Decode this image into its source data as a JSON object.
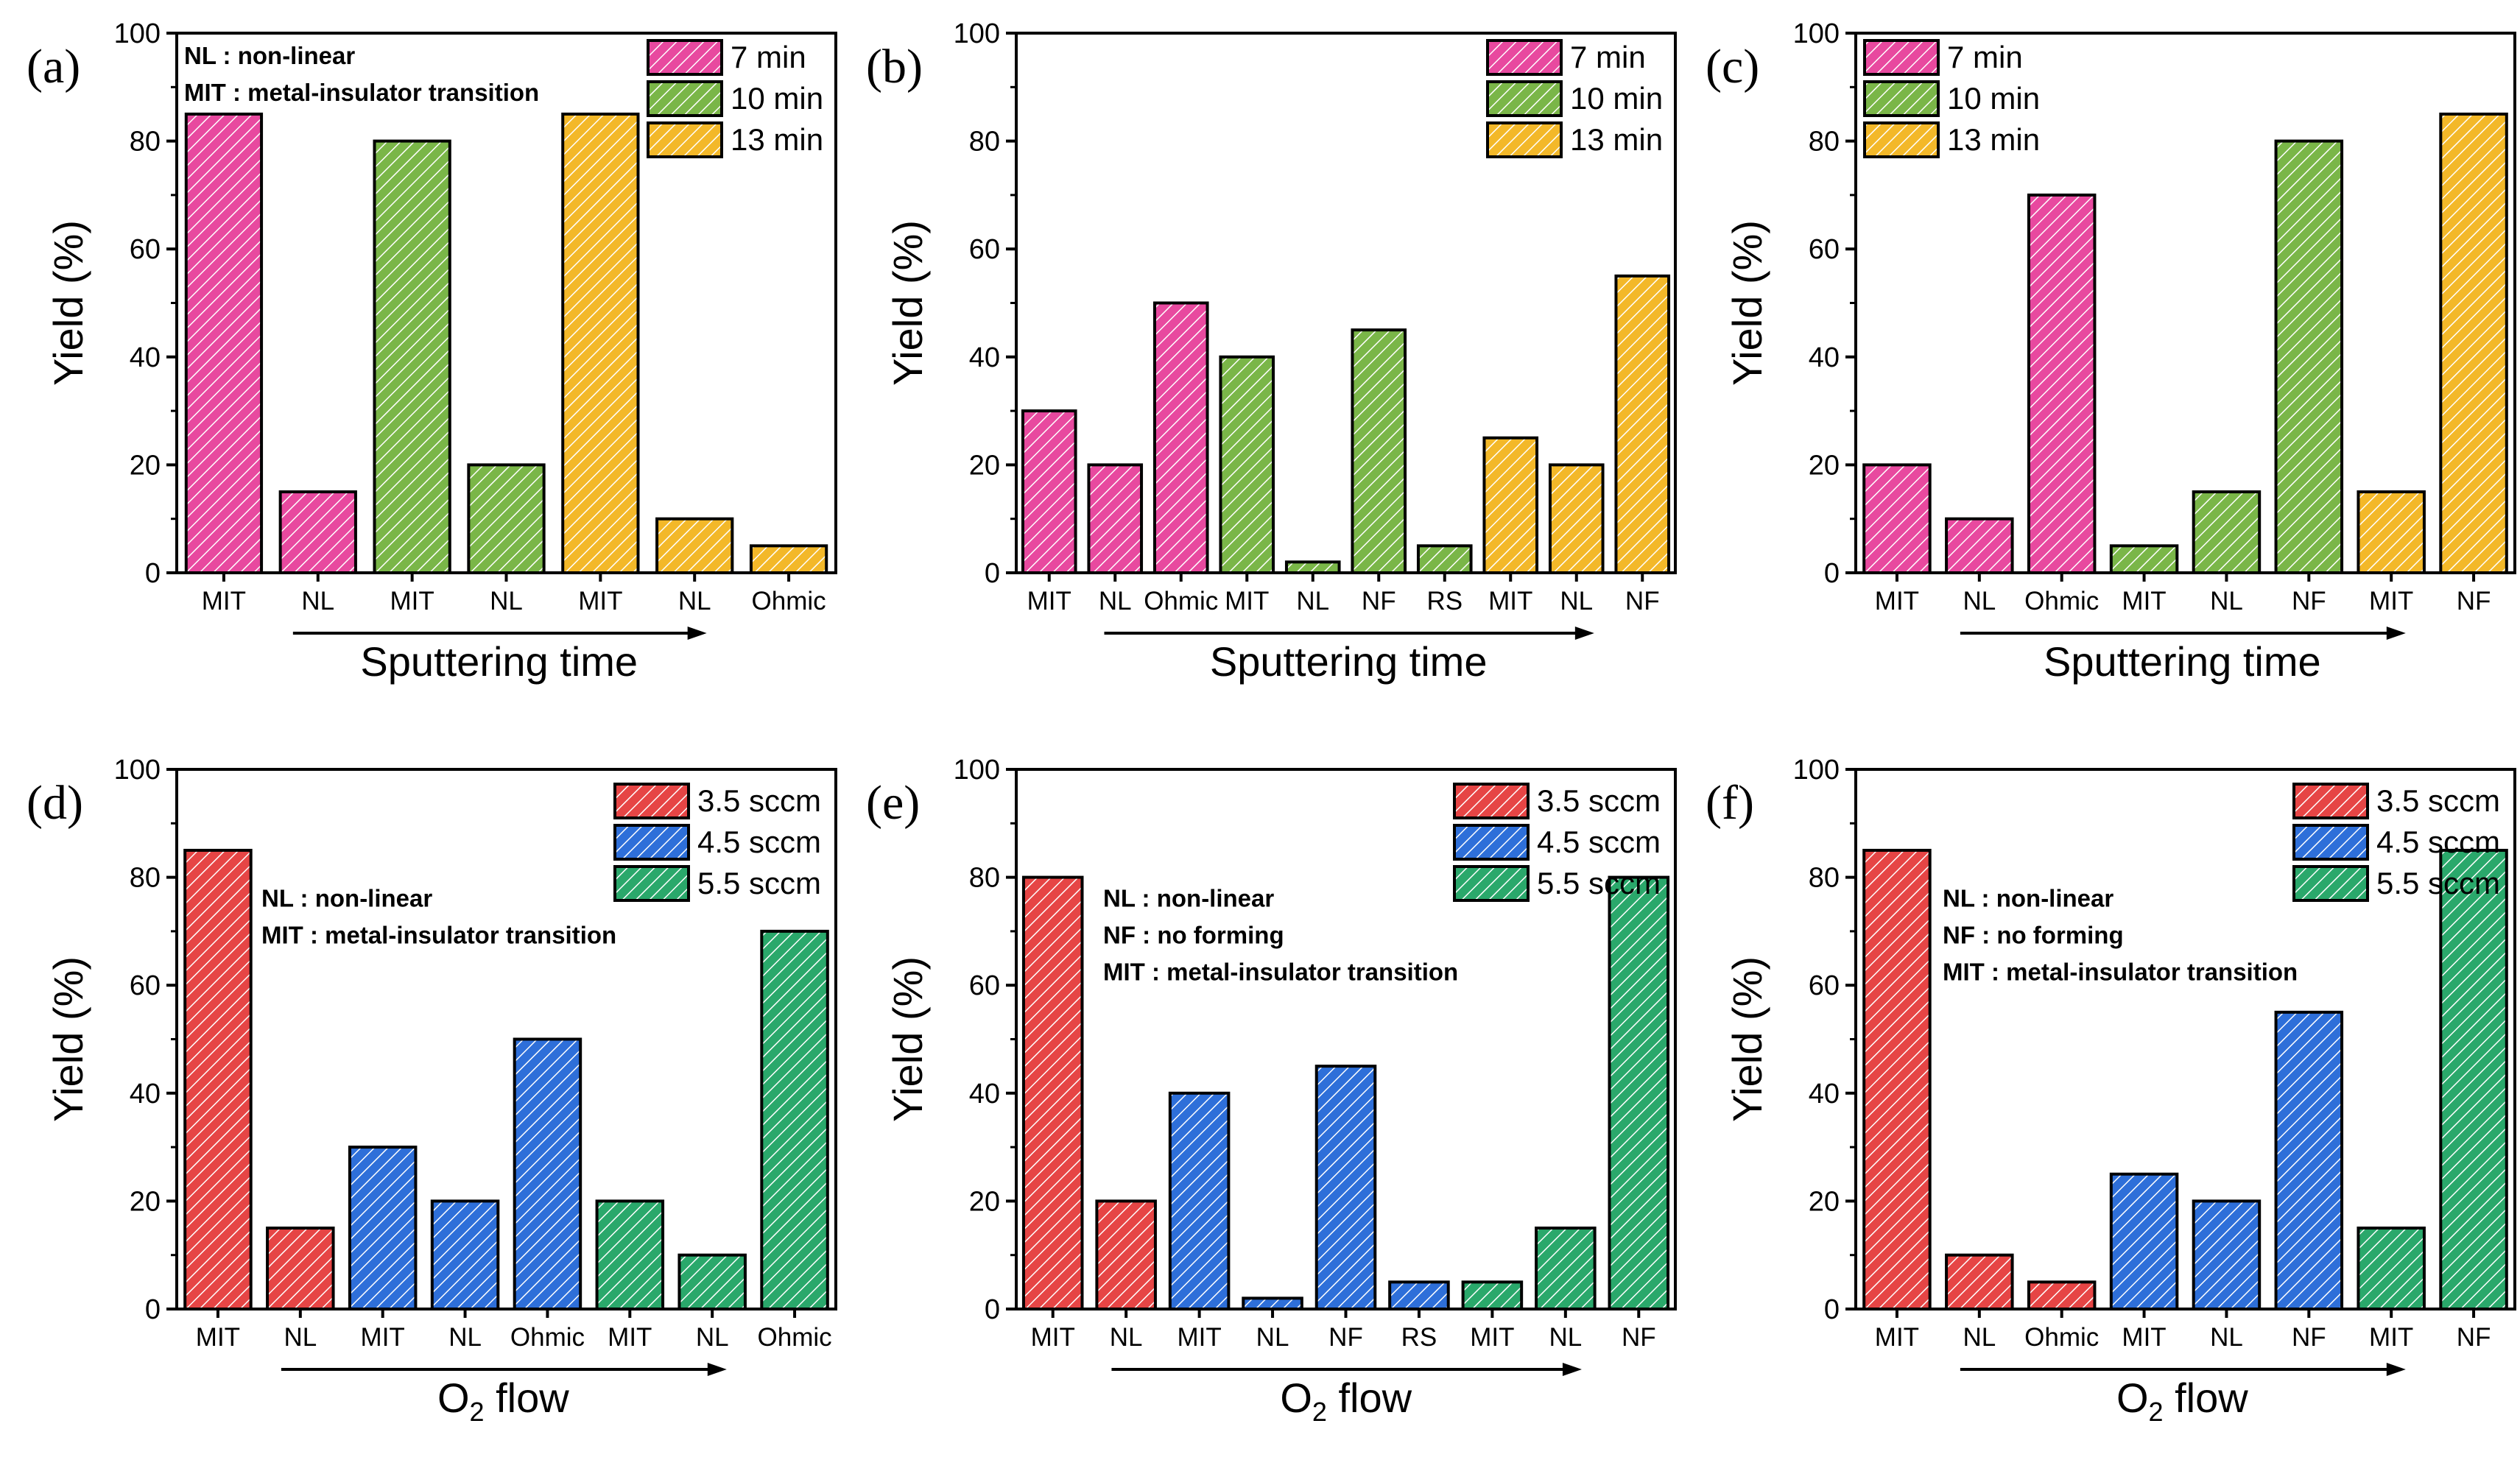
{
  "chart_data": [
    {
      "type": "bar",
      "panel_label": "(a)",
      "categories": [
        "MIT",
        "NL",
        "MIT",
        "NL",
        "MIT",
        "NL",
        "Ohmic"
      ],
      "values": [
        85,
        15,
        80,
        20,
        85,
        10,
        5
      ],
      "groups": [
        0,
        0,
        1,
        1,
        2,
        2,
        2
      ],
      "legend": [
        "7 min",
        "10 min",
        "13 min"
      ],
      "legend_position": "top-right",
      "annotations": [
        "NL : non-linear",
        "MIT : metal-insulator transition"
      ],
      "annotation_position": "top-left",
      "ylabel": "Yield (%)",
      "xlabel": "Sputtering time",
      "ylim": [
        0,
        100
      ],
      "yticks": [
        0,
        20,
        40,
        60,
        80,
        100
      ]
    },
    {
      "type": "bar",
      "panel_label": "(b)",
      "categories": [
        "MIT",
        "NL",
        "Ohmic",
        "MIT",
        "NL",
        "NF",
        "RS",
        "MIT",
        "NL",
        "NF"
      ],
      "values": [
        30,
        20,
        50,
        40,
        2,
        45,
        5,
        25,
        20,
        55
      ],
      "groups": [
        0,
        0,
        0,
        1,
        1,
        1,
        1,
        2,
        2,
        2
      ],
      "legend": [
        "7 min",
        "10 min",
        "13 min"
      ],
      "legend_position": "top-right",
      "annotations": [],
      "ylabel": "Yield (%)",
      "xlabel": "Sputtering time",
      "ylim": [
        0,
        100
      ],
      "yticks": [
        0,
        20,
        40,
        60,
        80,
        100
      ]
    },
    {
      "type": "bar",
      "panel_label": "(c)",
      "categories": [
        "MIT",
        "NL",
        "Ohmic",
        "MIT",
        "NL",
        "NF",
        "MIT",
        "NF"
      ],
      "values": [
        20,
        10,
        70,
        5,
        15,
        80,
        15,
        85
      ],
      "groups": [
        0,
        0,
        0,
        1,
        1,
        1,
        2,
        2
      ],
      "legend": [
        "7 min",
        "10 min",
        "13 min"
      ],
      "legend_position": "top-left",
      "annotations": [],
      "ylabel": "Yield (%)",
      "xlabel": "Sputtering time",
      "ylim": [
        0,
        100
      ],
      "yticks": [
        0,
        20,
        40,
        60,
        80,
        100
      ]
    },
    {
      "type": "bar",
      "panel_label": "(d)",
      "categories": [
        "MIT",
        "NL",
        "MIT",
        "NL",
        "Ohmic",
        "MIT",
        "NL",
        "Ohmic"
      ],
      "values": [
        85,
        15,
        30,
        20,
        50,
        20,
        10,
        70
      ],
      "groups": [
        0,
        0,
        1,
        1,
        1,
        2,
        2,
        2
      ],
      "legend": [
        "3.5 sccm",
        "4.5 sccm",
        "5.5 sccm"
      ],
      "legend_position": "top-right",
      "annotations": [
        "NL : non-linear",
        "MIT : metal-insulator transition"
      ],
      "annotation_position": "middle-left",
      "ylabel": "Yield (%)",
      "xlabel_main": "O",
      "xlabel_sub": "2",
      "xlabel_tail": " flow",
      "ylim": [
        0,
        100
      ],
      "yticks": [
        0,
        20,
        40,
        60,
        80,
        100
      ]
    },
    {
      "type": "bar",
      "panel_label": "(e)",
      "categories": [
        "MIT",
        "NL",
        "MIT",
        "NL",
        "NF",
        "RS",
        "MIT",
        "NL",
        "NF"
      ],
      "values": [
        80,
        20,
        40,
        2,
        45,
        5,
        5,
        15,
        80
      ],
      "groups": [
        0,
        0,
        1,
        1,
        1,
        1,
        2,
        2,
        2
      ],
      "legend": [
        "3.5 sccm",
        "4.5 sccm",
        "5.5 sccm"
      ],
      "legend_position": "top-right",
      "annotations": [
        "NL : non-linear",
        "NF : no forming",
        "MIT : metal-insulator transition"
      ],
      "annotation_position": "middle-left",
      "ylabel": "Yield (%)",
      "xlabel_main": "O",
      "xlabel_sub": "2",
      "xlabel_tail": " flow",
      "ylim": [
        0,
        100
      ],
      "yticks": [
        0,
        20,
        40,
        60,
        80,
        100
      ]
    },
    {
      "type": "bar",
      "panel_label": "(f)",
      "categories": [
        "MIT",
        "NL",
        "Ohmic",
        "MIT",
        "NL",
        "NF",
        "MIT",
        "NF"
      ],
      "values": [
        85,
        10,
        5,
        25,
        20,
        55,
        15,
        85
      ],
      "groups": [
        0,
        0,
        0,
        1,
        1,
        1,
        2,
        2
      ],
      "legend": [
        "3.5 sccm",
        "4.5 sccm",
        "5.5 sccm"
      ],
      "legend_position": "top-right",
      "annotations": [
        "NL : non-linear",
        "NF : no forming",
        "MIT : metal-insulator transition"
      ],
      "annotation_position": "middle-left",
      "ylabel": "Yield (%)",
      "xlabel_main": "O",
      "xlabel_sub": "2",
      "xlabel_tail": " flow",
      "ylim": [
        0,
        100
      ],
      "yticks": [
        0,
        20,
        40,
        60,
        80,
        100
      ]
    }
  ],
  "colors": {
    "top_groups": [
      "#e8499f",
      "#7ab648",
      "#f3b829"
    ],
    "bottom_groups": [
      "#e64545",
      "#2e6fd9",
      "#2aa86b"
    ],
    "stroke": "#000000"
  }
}
